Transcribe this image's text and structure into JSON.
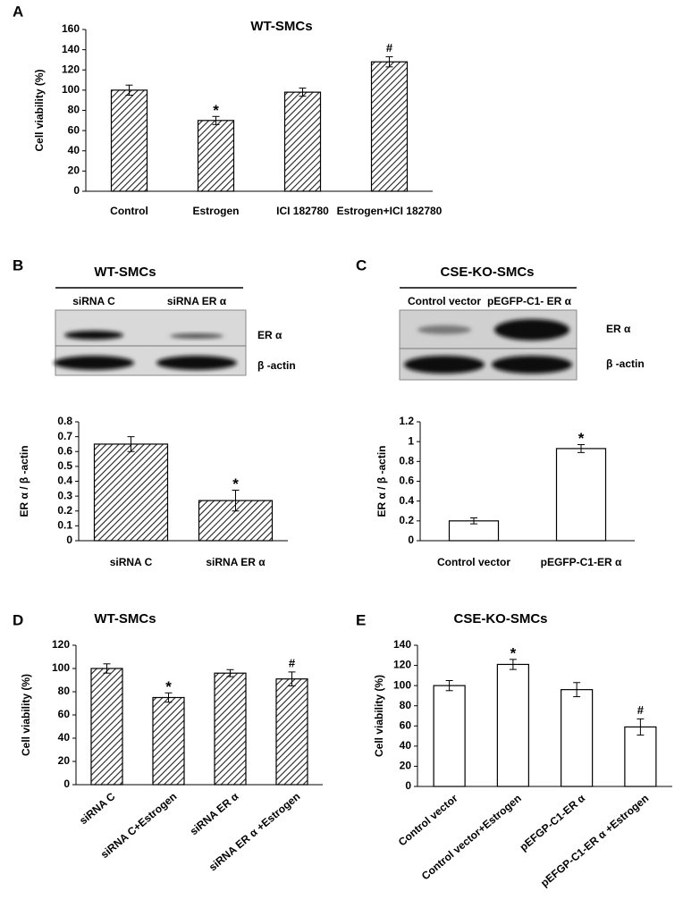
{
  "chart_data": [
    {
      "type": "bar",
      "panel": "A",
      "title": "WT-SMCs",
      "y_label": "Cell viability (%)",
      "categories": [
        "Control",
        "Estrogen",
        "ICI 182780",
        "Estrogen+ICI 182780"
      ],
      "values": [
        100,
        70,
        98,
        128
      ],
      "errors": [
        5,
        4,
        4,
        5
      ],
      "annotations": [
        null,
        "*",
        null,
        "#"
      ],
      "color": "#000000",
      "hatch": true,
      "ylim": [
        0,
        160
      ],
      "yticks": [
        0,
        20,
        40,
        60,
        80,
        100,
        120,
        140,
        160
      ],
      "rotate_labels": false
    },
    {
      "type": "bar",
      "panel": "B",
      "y_label": "ER α / β -actin",
      "categories": [
        "siRNA C",
        "siRNA ER α"
      ],
      "values": [
        0.65,
        0.27
      ],
      "errors": [
        0.05,
        0.07
      ],
      "annotations": [
        null,
        "*"
      ],
      "color": "#000000",
      "hatch": true,
      "ylim": [
        0,
        0.8
      ],
      "yticks": [
        0,
        0.1,
        0.2,
        0.3,
        0.4,
        0.5,
        0.6,
        0.7,
        0.8
      ],
      "rotate_labels": false
    },
    {
      "type": "bar",
      "panel": "C",
      "y_label": "ER α / β -actin",
      "categories": [
        "Control vector",
        "pEGFP-C1-ER α"
      ],
      "values": [
        0.2,
        0.93
      ],
      "errors": [
        0.03,
        0.04
      ],
      "annotations": [
        null,
        "*"
      ],
      "color": "#000000",
      "hatch": false,
      "ylim": [
        0,
        1.2
      ],
      "yticks": [
        0,
        0.2,
        0.4,
        0.6,
        0.8,
        1,
        1.2
      ],
      "rotate_labels": false
    },
    {
      "type": "bar",
      "panel": "D",
      "title": "WT-SMCs",
      "y_label": "Cell viability (%)",
      "categories": [
        "siRNA C",
        "siRNA C+Estrogen",
        "siRNA ER α",
        "siRNA ER α +Estrogen"
      ],
      "values": [
        100,
        75,
        96,
        91
      ],
      "errors": [
        4,
        4,
        3,
        6
      ],
      "annotations": [
        null,
        "*",
        null,
        "#"
      ],
      "color": "#000000",
      "hatch": true,
      "ylim": [
        0,
        120
      ],
      "yticks": [
        0,
        20,
        40,
        60,
        80,
        100,
        120
      ],
      "rotate_labels": true
    },
    {
      "type": "bar",
      "panel": "E",
      "title": "CSE-KO-SMCs",
      "y_label": "Cell viability (%)",
      "categories": [
        "Control vector",
        "Control vector+Estrogen",
        "pEFGP-C1-ER α",
        "pEFGP-C1-ER α +Estrogen"
      ],
      "values": [
        100,
        121,
        96,
        59
      ],
      "errors": [
        5,
        5,
        7,
        8
      ],
      "annotations": [
        null,
        "*",
        null,
        "#"
      ],
      "color": "#000000",
      "hatch": false,
      "ylim": [
        0,
        140
      ],
      "yticks": [
        0,
        20,
        40,
        60,
        80,
        100,
        120,
        140
      ],
      "rotate_labels": true
    }
  ],
  "blots": [
    {
      "title": "WT-SMCs",
      "lanes": [
        "siRNA C",
        "siRNA ER α"
      ],
      "bands": [
        "ER α",
        "β -actin"
      ]
    },
    {
      "title": "CSE-KO-SMCs",
      "lanes": [
        "Control vector",
        "pEGFP-C1- ER α"
      ],
      "bands": [
        "ER α",
        "β -actin"
      ]
    }
  ]
}
